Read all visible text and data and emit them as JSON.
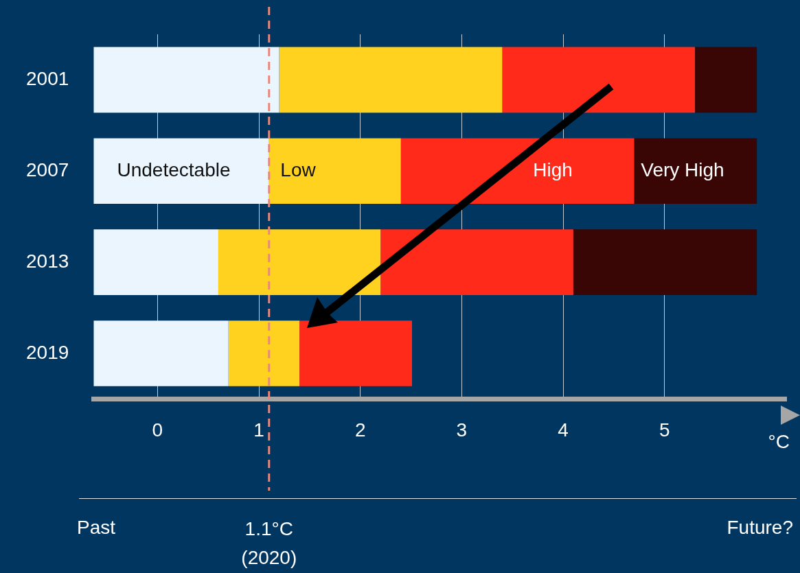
{
  "chart_data": {
    "type": "bar",
    "orientation": "horizontal",
    "categories": [
      "2001",
      "2007",
      "2013",
      "2019"
    ],
    "series": [
      {
        "color": "#eaf5fd",
        "base": [
          -0.63,
          -0.63,
          -0.63,
          -0.63
        ],
        "values": [
          1.83,
          1.73,
          1.23,
          1.33
        ]
      },
      {
        "color": "#ffd21f",
        "base": [
          1.2,
          1.1,
          0.6,
          0.7
        ],
        "values": [
          2.2,
          1.3,
          1.6,
          0.7
        ]
      },
      {
        "color": "#ff2a1a",
        "base": [
          3.4,
          2.4,
          2.2,
          1.4
        ],
        "values": [
          1.9,
          2.3,
          1.9,
          1.11
        ]
      },
      {
        "color": "#3a0505",
        "base": [
          5.3,
          4.7,
          4.1,
          null
        ],
        "values": [
          0.61,
          1.21,
          1.81,
          null
        ]
      }
    ],
    "xlim": [
      -0.63,
      6.2
    ],
    "xticks": [
      0,
      1,
      2,
      3,
      4,
      5
    ],
    "xlabel": "°C",
    "grid": "x",
    "legend": false,
    "ref_lines": [
      {
        "axis": "x",
        "value": 1.1,
        "label": "1.1°C\n(2020)",
        "color": "#e8887a",
        "line_style": "dashed"
      }
    ],
    "annotations": [
      "Undetectable",
      "Low",
      "High",
      "Very High",
      "Past",
      "Future?"
    ]
  }
}
